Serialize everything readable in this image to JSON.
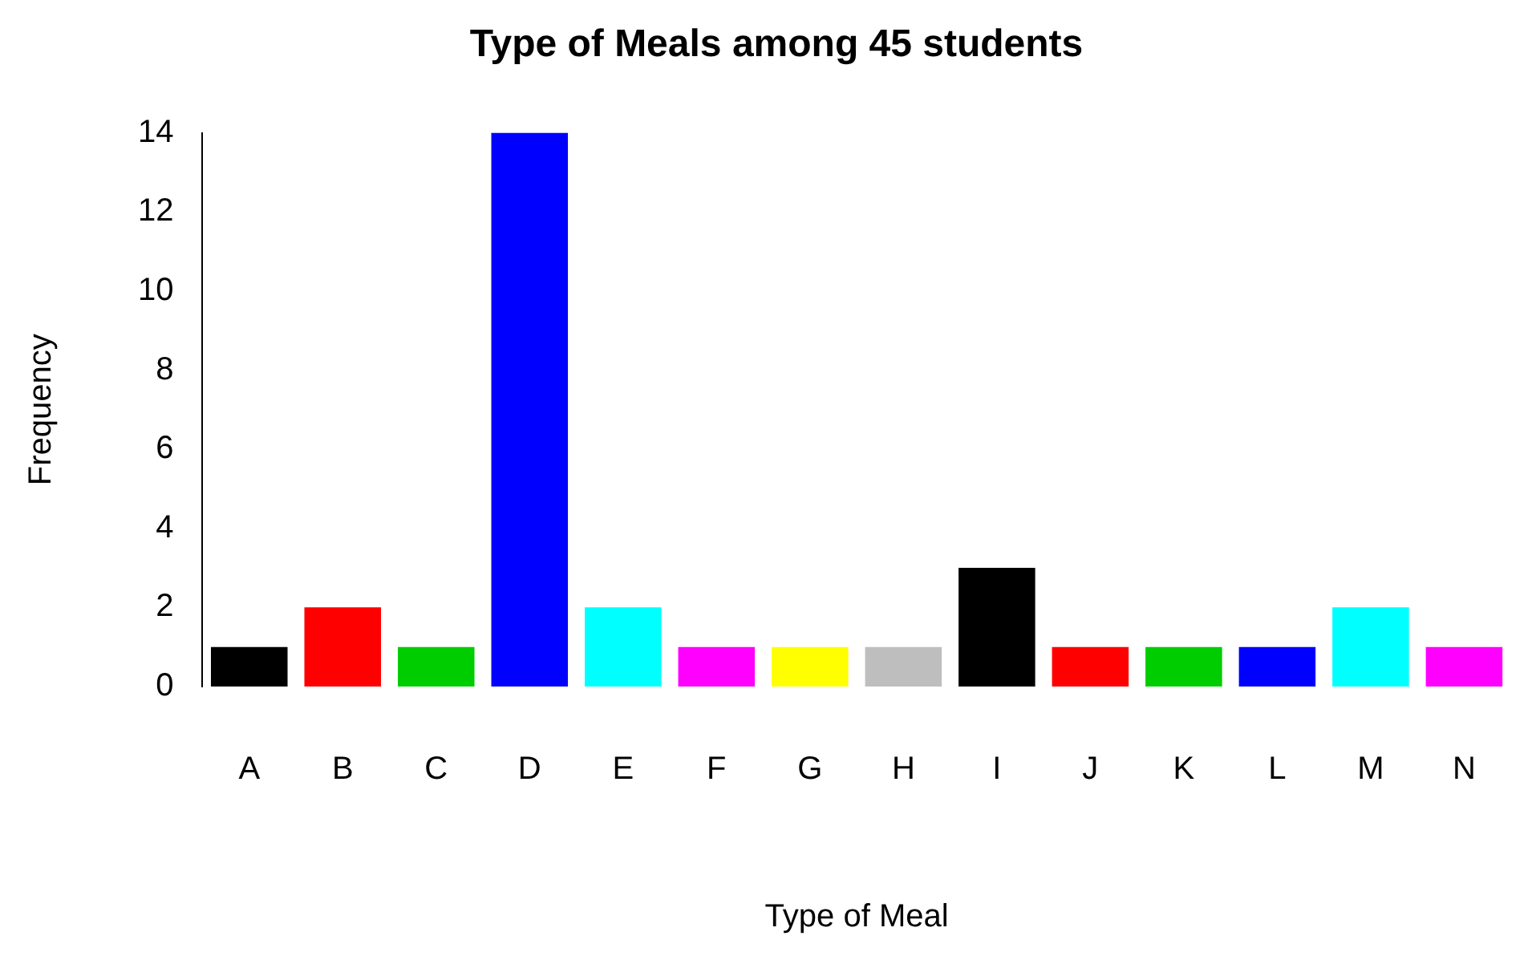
{
  "chart_data": {
    "type": "bar",
    "title": "Type of Meals among 45 students",
    "xlabel": "Type of Meal",
    "ylabel": "Frequency",
    "categories": [
      "A",
      "B",
      "C",
      "D",
      "E",
      "F",
      "G",
      "H",
      "I",
      "J",
      "K",
      "L",
      "M",
      "N"
    ],
    "values": [
      1,
      2,
      1,
      14,
      2,
      1,
      1,
      1,
      3,
      1,
      1,
      1,
      2,
      1
    ],
    "colors": [
      "#000000",
      "#ff0000",
      "#00cd00",
      "#0000ff",
      "#00ffff",
      "#ff00ff",
      "#ffff00",
      "#bebebe",
      "#000000",
      "#ff0000",
      "#00cd00",
      "#0000ff",
      "#00ffff",
      "#ff00ff"
    ],
    "ylim": [
      0,
      14
    ],
    "yticks": [
      0,
      2,
      4,
      6,
      8,
      10,
      12,
      14
    ],
    "grid": false,
    "legend": false
  }
}
